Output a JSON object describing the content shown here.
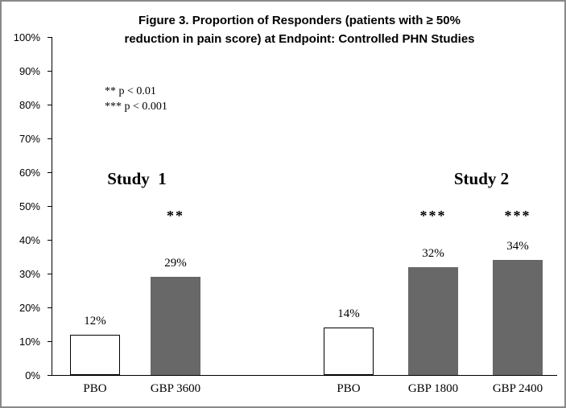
{
  "chart_data": {
    "type": "bar",
    "title": "Figure 3. Proportion of Responders (patients with ≥ 50% reduction in pain score) at Endpoint: Controlled PHN Studies",
    "title_lines": [
      "Figure 3. Proportion of Responders (patients with ≥ 50%",
      "reduction in pain score) at Endpoint: Controlled PHN Studies"
    ],
    "xlabel": "",
    "ylabel": "",
    "ylim": [
      0,
      100
    ],
    "ytick_step": 10,
    "ytick_labels": [
      "0%",
      "10%",
      "20%",
      "30%",
      "40%",
      "50%",
      "60%",
      "70%",
      "80%",
      "90%",
      "100%"
    ],
    "grid": false,
    "legend_position": "none",
    "annotations": [
      {
        "text": "** p < 0.01"
      },
      {
        "text": "*** p < 0.001"
      }
    ],
    "groups": [
      {
        "label": "Study  1",
        "bars": [
          {
            "category": "PBO",
            "value": 12,
            "label": "12%",
            "fill": "white",
            "sig": ""
          },
          {
            "category": "GBP 3600",
            "value": 29,
            "label": "29%",
            "fill": "gray",
            "sig": "**"
          }
        ]
      },
      {
        "label": "Study 2",
        "bars": [
          {
            "category": "PBO",
            "value": 14,
            "label": "14%",
            "fill": "white",
            "sig": ""
          },
          {
            "category": "GBP 1800",
            "value": 32,
            "label": "32%",
            "fill": "gray",
            "sig": "***"
          },
          {
            "category": "GBP 2400",
            "value": 34,
            "label": "34%",
            "fill": "gray",
            "sig": "***"
          }
        ]
      }
    ],
    "colors": {
      "bar_gray": "#686868",
      "bar_white": "#ffffff",
      "bar_border": "#000000",
      "axis": "#000000"
    }
  }
}
